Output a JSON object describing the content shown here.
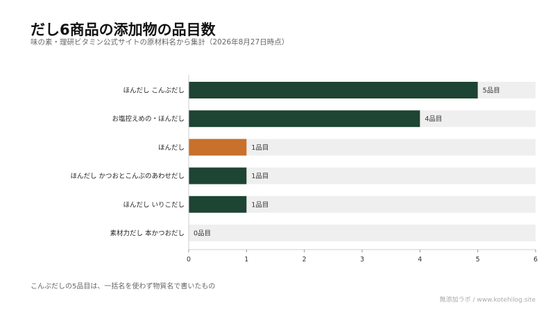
{
  "title": "だし6商品の添加物の品目数",
  "subtitle": "味の素・理研ビタミン公式サイトの原材料名から集計（2026年8月27日時点）",
  "footnote": "こんぶだしの5品目は、一括名を使わず物質名で書いたもの",
  "credit": "無添加ラボ / www.kotehilog.site",
  "value_suffix": "品目",
  "colors": {
    "bar": "#1e4433",
    "highlight": "#c8702c",
    "track": "#efefef",
    "axis": "#cccccc"
  },
  "chart_data": {
    "type": "bar",
    "orientation": "horizontal",
    "categories": [
      "ほんだし こんぶだし",
      "お塩控えめの・ほんだし",
      "ほんだし",
      "ほんだし かつおとこんぶのあわせだし",
      "ほんだし いりこだし",
      "素材力だし 本かつおだし"
    ],
    "values": [
      5,
      4,
      1,
      1,
      1,
      0
    ],
    "highlight_index": 2,
    "xlim": [
      0,
      6
    ],
    "xticks": [
      0,
      1,
      2,
      3,
      4,
      5,
      6
    ],
    "xlabel": "",
    "ylabel": "",
    "grid": false,
    "data_labels": [
      "5品目",
      "4品目",
      "1品目",
      "1品目",
      "1品目",
      "0品目"
    ]
  }
}
